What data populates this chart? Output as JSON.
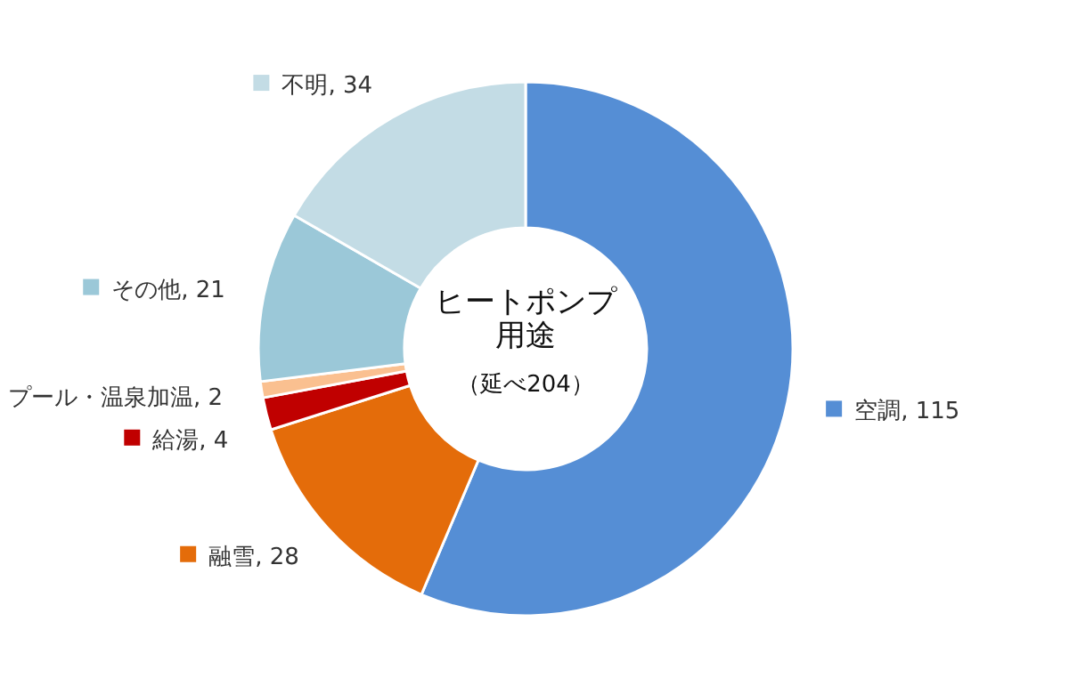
{
  "chart_data": {
    "type": "donut",
    "title": "ヒートポンプ用途",
    "subtitle": "（延べ204）",
    "categories": [
      "空調",
      "融雪",
      "給湯",
      "プール・温泉加温",
      "その他",
      "不明"
    ],
    "values": [
      115,
      28,
      4,
      2,
      21,
      34
    ],
    "colors": [
      "#558ed5",
      "#e46c0a",
      "#c00000",
      "#fac090",
      "#9bc8d8",
      "#c3dce5"
    ],
    "legend": "left",
    "value_labels": [
      ", 115",
      ", 28",
      ", 4",
      ", 2",
      ", 21",
      ", 34"
    ]
  }
}
